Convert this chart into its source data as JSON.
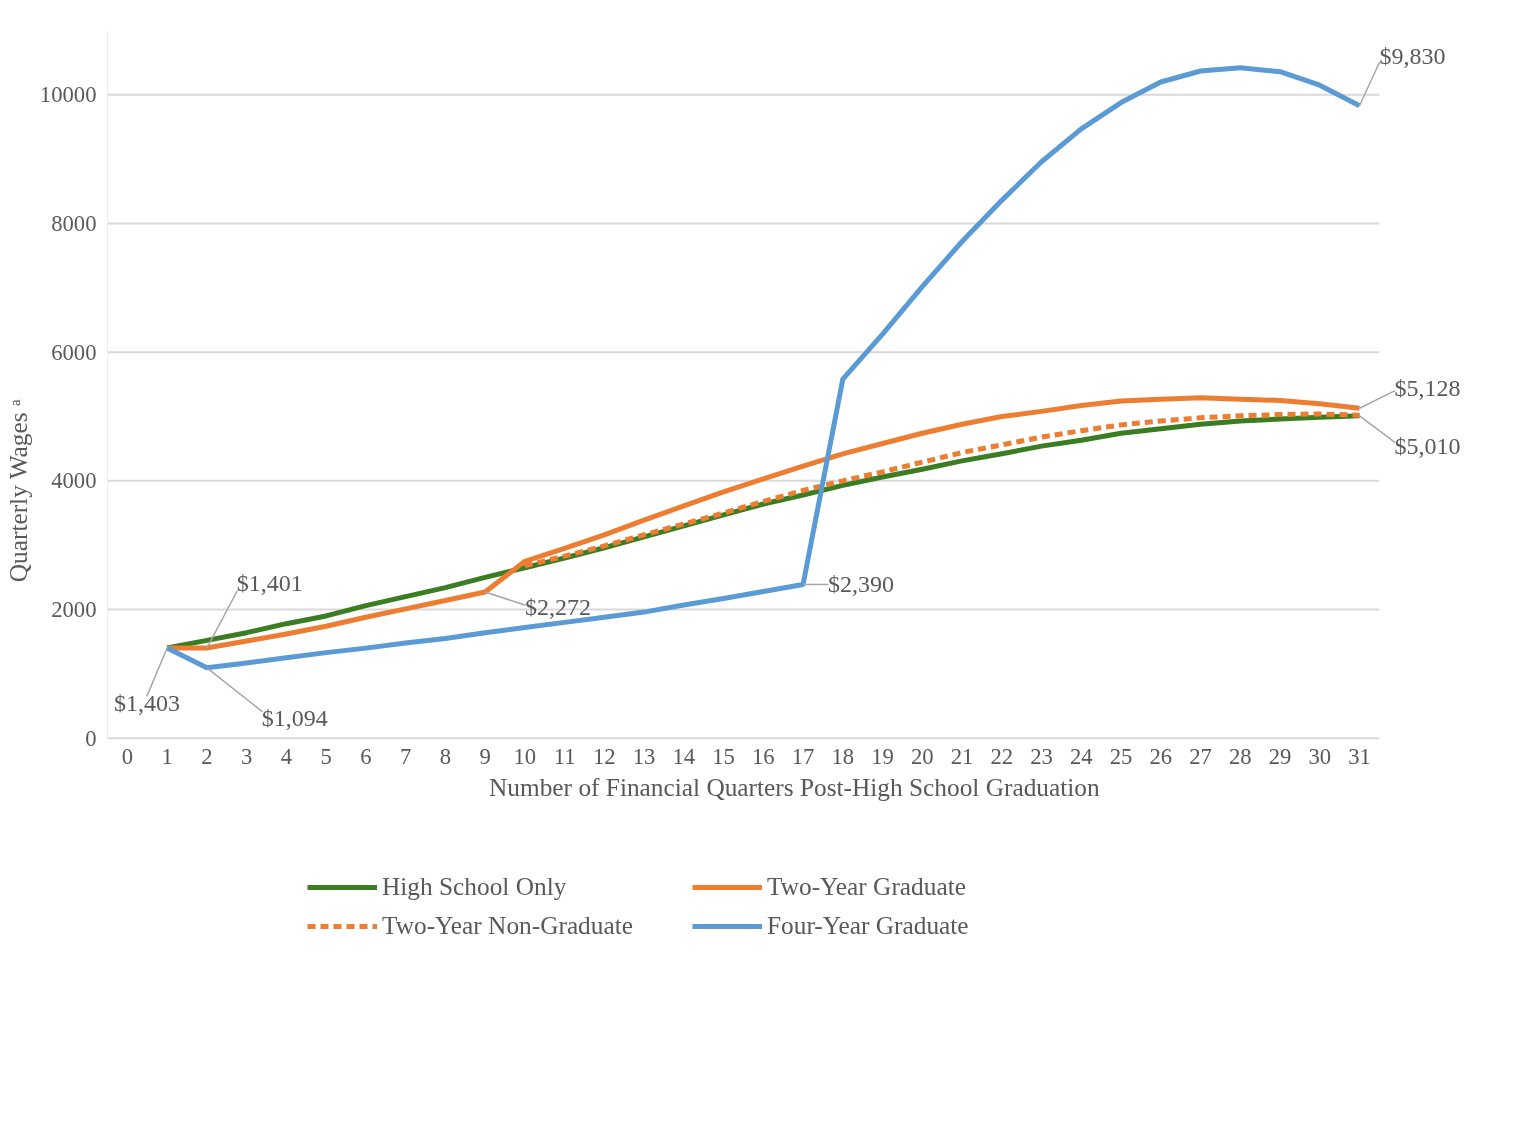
{
  "chart_data": {
    "type": "line",
    "xlabel": "Number  of Financial Quarters Post-High School Graduation",
    "ylabel": "Quarterly Wages ᵃ",
    "x": [
      1,
      2,
      3,
      4,
      5,
      6,
      7,
      8,
      9,
      10,
      11,
      12,
      13,
      14,
      15,
      16,
      17,
      18,
      19,
      20,
      21,
      22,
      23,
      24,
      25,
      26,
      27,
      28,
      29,
      30,
      31
    ],
    "series": [
      {
        "name": "High School Only",
        "color": "#3a7d22",
        "line_style": "solid",
        "values": [
          1403,
          1520,
          1640,
          1780,
          1900,
          2060,
          2200,
          2340,
          2500,
          2650,
          2800,
          2960,
          3130,
          3300,
          3470,
          3640,
          3780,
          3930,
          4060,
          4180,
          4310,
          4420,
          4540,
          4630,
          4740,
          4810,
          4880,
          4930,
          4960,
          4990,
          5010
        ]
      },
      {
        "name": "Two-Year Graduate",
        "color": "#ed7d31",
        "line_style": "solid",
        "values": [
          1403,
          1401,
          1510,
          1620,
          1740,
          1880,
          2010,
          2140,
          2272,
          2750,
          2950,
          3160,
          3390,
          3610,
          3830,
          4030,
          4230,
          4420,
          4580,
          4740,
          4880,
          5000,
          5080,
          5170,
          5240,
          5270,
          5290,
          5270,
          5250,
          5200,
          5128
        ]
      },
      {
        "name": "Two-Year Non-Graduate",
        "color": "#ed7d31",
        "line_style": "dashed",
        "x": [
          10,
          11,
          12,
          13,
          14,
          15,
          16,
          17,
          18,
          19,
          20,
          21,
          22,
          23,
          24,
          25,
          26,
          27,
          28,
          29,
          30,
          31
        ],
        "values": [
          2680,
          2830,
          2990,
          3160,
          3330,
          3500,
          3680,
          3850,
          4000,
          4140,
          4290,
          4440,
          4560,
          4680,
          4780,
          4870,
          4930,
          4980,
          5010,
          5030,
          5040,
          5020
        ]
      },
      {
        "name": "Four-Year Graduate",
        "color": "#5b9bd5",
        "line_style": "solid",
        "values": [
          1403,
          1094,
          1170,
          1250,
          1330,
          1400,
          1480,
          1550,
          1640,
          1720,
          1800,
          1880,
          1960,
          2070,
          2170,
          2280,
          2390,
          5580,
          6280,
          7020,
          7720,
          8360,
          8960,
          9470,
          9880,
          10200,
          10370,
          10420,
          10360,
          10150,
          9830
        ]
      }
    ],
    "annotations": [
      {
        "text": "$1,403",
        "x": 1,
        "y": 1403
      },
      {
        "text": "$1,401",
        "x": 2,
        "y": 1401
      },
      {
        "text": "$1,094",
        "x": 2,
        "y": 1094
      },
      {
        "text": "$2,272",
        "x": 9,
        "y": 2272
      },
      {
        "text": "$2,390",
        "x": 17,
        "y": 2390
      },
      {
        "text": "$9,830",
        "x": 31,
        "y": 9830
      },
      {
        "text": "$5,128",
        "x": 31,
        "y": 5128
      },
      {
        "text": "$5,010",
        "x": 31,
        "y": 5010
      }
    ],
    "xlim": [
      -0.5,
      31.5
    ],
    "xticks": [
      0,
      1,
      2,
      3,
      4,
      5,
      6,
      7,
      8,
      9,
      10,
      11,
      12,
      13,
      14,
      15,
      16,
      17,
      18,
      19,
      20,
      21,
      22,
      23,
      24,
      25,
      26,
      27,
      28,
      29,
      30,
      31
    ],
    "ylim": [
      0,
      11000
    ],
    "yticks": [
      0,
      2000,
      4000,
      6000,
      8000,
      10000
    ],
    "grid": "y",
    "legend": "bottom",
    "marker": "none"
  }
}
